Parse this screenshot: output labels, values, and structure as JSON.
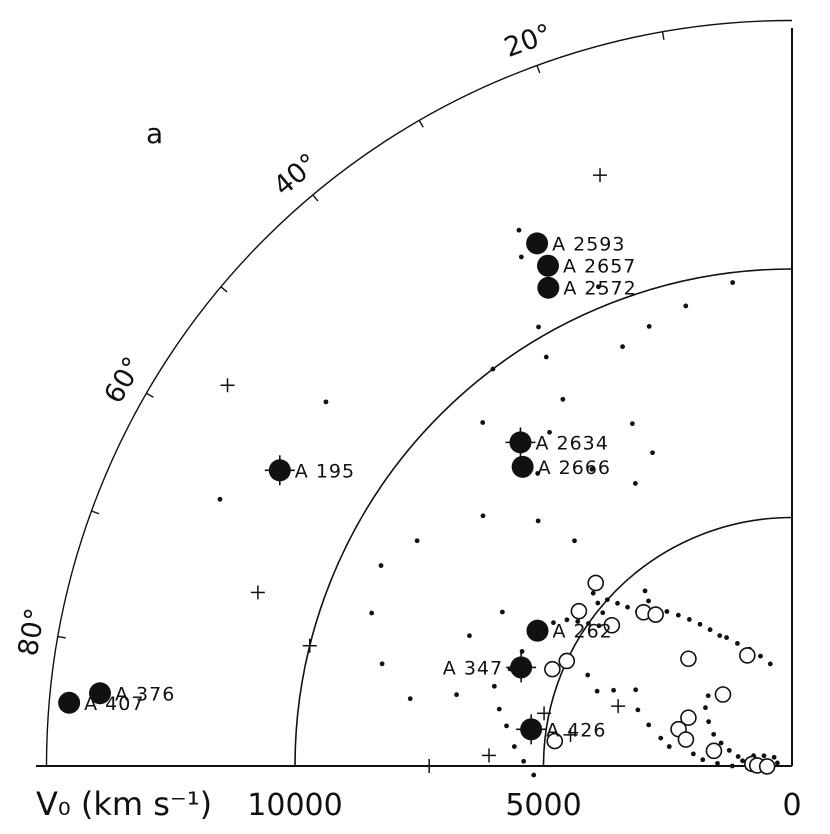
{
  "chart_data": {
    "type": "scatter",
    "projection": "polar-wedge",
    "panel_label": "a",
    "xlabel": "V₀ (km s⁻¹)",
    "r_ticks": [
      {
        "value": 10000,
        "label": "10000"
      },
      {
        "value": 5000,
        "label": "5000"
      },
      {
        "value": 0,
        "label": "0"
      }
    ],
    "r_circles": [
      5000,
      10000
    ],
    "r_max": 15000,
    "angle_ticks": [
      {
        "deg": 20,
        "label": "20°"
      },
      {
        "deg": 40,
        "label": "40°"
      },
      {
        "deg": 60,
        "label": "60°"
      },
      {
        "deg": 80,
        "label": "80°"
      }
    ],
    "clusters": [
      {
        "name": "A 2593",
        "v": 11700,
        "deg": 22,
        "cross": false
      },
      {
        "name": "A 2657",
        "v": 11200,
        "deg": 22,
        "cross": false
      },
      {
        "name": "A 2572",
        "v": 10800,
        "deg": 23,
        "cross": false
      },
      {
        "name": "A 195",
        "v": 11900,
        "deg": 56,
        "cross": true
      },
      {
        "name": "A 2634",
        "v": 8500,
        "deg": 36,
        "cross": true
      },
      {
        "name": "A 2666",
        "v": 8100,
        "deg": 38,
        "cross": false
      },
      {
        "name": "A 376",
        "v": 14000,
        "deg": 80,
        "cross": false
      },
      {
        "name": "A 407",
        "v": 14600,
        "deg": 81,
        "cross": false
      },
      {
        "name": "A 262",
        "v": 5800,
        "deg": 58,
        "cross": false
      },
      {
        "name": "A 347",
        "v": 5800,
        "deg": 66,
        "cross": true
      },
      {
        "name": "A 426",
        "v": 5300,
        "deg": 78,
        "cross": true
      }
    ],
    "crosses": [
      {
        "v": 12500,
        "deg": 14
      },
      {
        "v": 13700,
        "deg": 52
      },
      {
        "v": 11300,
        "deg": 68
      },
      {
        "v": 10000,
        "deg": 72
      },
      {
        "v": 7300,
        "deg": 86
      },
      {
        "v": 6100,
        "deg": 84
      },
      {
        "v": 3700,
        "deg": 67
      },
      {
        "v": 5100,
        "deg": 74
      },
      {
        "v": 4500,
        "deg": 78
      }
    ],
    "open_circles": [
      {
        "v": 2000,
        "deg": 40
      },
      {
        "v": 5400,
        "deg": 43
      },
      {
        "v": 5300,
        "deg": 50
      },
      {
        "v": 4600,
        "deg": 48
      },
      {
        "v": 4300,
        "deg": 40
      },
      {
        "v": 4100,
        "deg": 38
      },
      {
        "v": 5000,
        "deg": 61
      },
      {
        "v": 5200,
        "deg": 64
      },
      {
        "v": 4800,
        "deg": 80
      },
      {
        "v": 2400,
        "deg": 18
      },
      {
        "v": 3000,
        "deg": 40
      },
      {
        "v": 2300,
        "deg": 61
      },
      {
        "v": 2400,
        "deg": 68
      },
      {
        "v": 2200,
        "deg": 72
      },
      {
        "v": 1600,
        "deg": 75
      },
      {
        "v": 800,
        "deg": 83
      },
      {
        "v": 700,
        "deg": 85
      },
      {
        "v": 500,
        "deg": 87
      }
    ],
    "small_dots": [
      {
        "v": 5600,
        "deg": 55
      },
      {
        "v": 5700,
        "deg": 57
      },
      {
        "v": 5400,
        "deg": 53
      },
      {
        "v": 5200,
        "deg": 52
      },
      {
        "v": 5000,
        "deg": 51
      },
      {
        "v": 4800,
        "deg": 50
      },
      {
        "v": 4700,
        "deg": 48
      },
      {
        "v": 4900,
        "deg": 47
      },
      {
        "v": 5100,
        "deg": 46
      },
      {
        "v": 5300,
        "deg": 45
      },
      {
        "v": 5000,
        "deg": 44
      },
      {
        "v": 4800,
        "deg": 43
      },
      {
        "v": 4600,
        "deg": 42
      },
      {
        "v": 4400,
        "deg": 41
      },
      {
        "v": 4200,
        "deg": 39
      },
      {
        "v": 4400,
        "deg": 37
      },
      {
        "v": 4600,
        "deg": 36
      },
      {
        "v": 4000,
        "deg": 35
      },
      {
        "v": 3800,
        "deg": 33
      },
      {
        "v": 3600,
        "deg": 31
      },
      {
        "v": 3400,
        "deg": 29
      },
      {
        "v": 3200,
        "deg": 27
      },
      {
        "v": 3000,
        "deg": 25
      },
      {
        "v": 2900,
        "deg": 23
      },
      {
        "v": 2700,
        "deg": 20
      },
      {
        "v": 2500,
        "deg": 16
      },
      {
        "v": 2300,
        "deg": 12
      },
      {
        "v": 2100,
        "deg": 8
      },
      {
        "v": 5900,
        "deg": 63
      },
      {
        "v": 6000,
        "deg": 67
      },
      {
        "v": 6200,
        "deg": 71
      },
      {
        "v": 6000,
        "deg": 75
      },
      {
        "v": 5800,
        "deg": 78
      },
      {
        "v": 5600,
        "deg": 82
      },
      {
        "v": 5400,
        "deg": 85
      },
      {
        "v": 5200,
        "deg": 88
      },
      {
        "v": 4500,
        "deg": 62
      },
      {
        "v": 4200,
        "deg": 65
      },
      {
        "v": 3900,
        "deg": 63
      },
      {
        "v": 3500,
        "deg": 60
      },
      {
        "v": 3300,
        "deg": 66
      },
      {
        "v": 3000,
        "deg": 70
      },
      {
        "v": 2700,
        "deg": 74
      },
      {
        "v": 2500,
        "deg": 77
      },
      {
        "v": 2000,
        "deg": 79
      },
      {
        "v": 1800,
        "deg": 82
      },
      {
        "v": 1500,
        "deg": 84
      },
      {
        "v": 1200,
        "deg": 86
      },
      {
        "v": 1000,
        "deg": 80
      },
      {
        "v": 1100,
        "deg": 76
      },
      {
        "v": 1300,
        "deg": 72
      },
      {
        "v": 1500,
        "deg": 68
      },
      {
        "v": 1700,
        "deg": 64
      },
      {
        "v": 1900,
        "deg": 58
      },
      {
        "v": 2100,
        "deg": 52
      },
      {
        "v": 2200,
        "deg": 46
      },
      {
        "v": 800,
        "deg": 71
      },
      {
        "v": 600,
        "deg": 66
      },
      {
        "v": 400,
        "deg": 60
      },
      {
        "v": 300,
        "deg": 74
      },
      {
        "v": 700,
        "deg": 78
      },
      {
        "v": 900,
        "deg": 88
      },
      {
        "v": 400,
        "deg": 89
      },
      {
        "v": 6300,
        "deg": 40
      },
      {
        "v": 7100,
        "deg": 42
      },
      {
        "v": 8000,
        "deg": 47
      },
      {
        "v": 8800,
        "deg": 55
      },
      {
        "v": 9200,
        "deg": 60
      },
      {
        "v": 9000,
        "deg": 66
      },
      {
        "v": 8500,
        "deg": 72
      },
      {
        "v": 7800,
        "deg": 76
      },
      {
        "v": 6900,
        "deg": 74
      },
      {
        "v": 6600,
        "deg": 58
      },
      {
        "v": 7000,
        "deg": 64
      },
      {
        "v": 9600,
        "deg": 27
      },
      {
        "v": 10200,
        "deg": 26
      },
      {
        "v": 10000,
        "deg": 33
      },
      {
        "v": 9300,
        "deg": 38
      },
      {
        "v": 9800,
        "deg": 3
      },
      {
        "v": 9500,
        "deg": 9
      },
      {
        "v": 9300,
        "deg": 14
      },
      {
        "v": 9100,
        "deg": 18
      },
      {
        "v": 8700,
        "deg": 28
      },
      {
        "v": 8300,
        "deg": 32
      },
      {
        "v": 7600,
        "deg": 21
      },
      {
        "v": 6900,
        "deg": 20
      },
      {
        "v": 6500,
        "deg": 25
      },
      {
        "v": 7200,
        "deg": 30
      },
      {
        "v": 7800,
        "deg": 37
      },
      {
        "v": 11600,
        "deg": 24
      },
      {
        "v": 12100,
        "deg": 23
      },
      {
        "v": 10400,
        "deg": 18
      },
      {
        "v": 12700,
        "deg": 61
      },
      {
        "v": 11900,
        "deg": 48
      }
    ]
  }
}
